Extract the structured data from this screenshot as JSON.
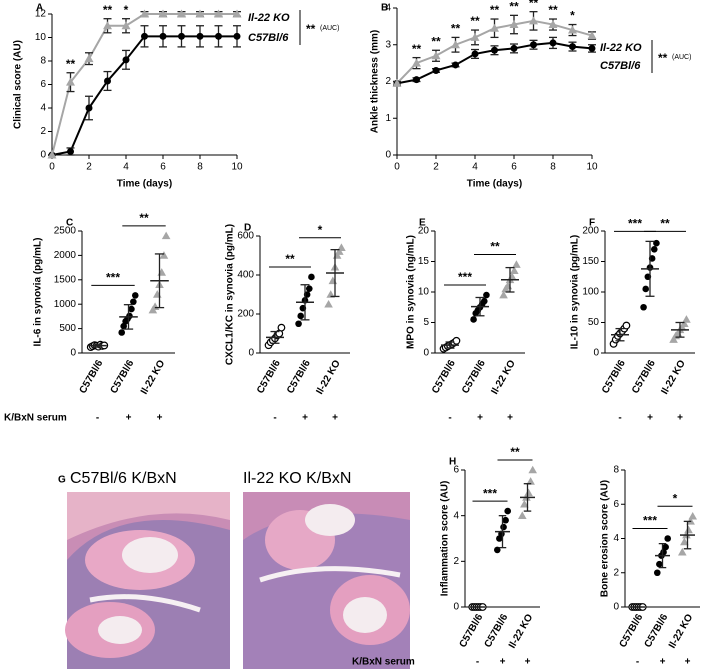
{
  "figure_g": {
    "label": "G",
    "captions": [
      "C57Bl/6 K/BxN",
      "Il-22 KO K/BxN"
    ]
  },
  "chart_data": [
    {
      "type": "line",
      "panel": "A",
      "xlabel": "Time (days)",
      "ylabel": "Clinical score (AU)",
      "x": [
        0,
        1,
        2,
        3,
        4,
        5,
        6,
        7,
        8,
        9,
        10
      ],
      "xlim": [
        0,
        10
      ],
      "xticks": [
        0,
        2,
        4,
        6,
        8,
        10
      ],
      "ylim": [
        0,
        12
      ],
      "yticks": [
        0,
        2,
        4,
        6,
        8,
        10,
        12
      ],
      "series": [
        {
          "name": "Il-22 KO",
          "color": "#a6a6a6",
          "marker": "triangle",
          "values": [
            0,
            6.2,
            8.2,
            11,
            11,
            12,
            12,
            12,
            12,
            12,
            12
          ],
          "errors": [
            0,
            0.8,
            0.5,
            0.6,
            0.6,
            0.2,
            0.2,
            0.2,
            0.2,
            0.2,
            0.2
          ]
        },
        {
          "name": "C57Bl/6",
          "color": "#000000",
          "marker": "circle",
          "values": [
            0,
            0.3,
            4,
            6.3,
            8.1,
            10.1,
            10.1,
            10.1,
            10.1,
            10.1,
            10.1
          ],
          "errors": [
            0,
            0.3,
            1,
            0.8,
            0.8,
            0.9,
            0.9,
            0.9,
            0.9,
            0.9,
            0.9
          ]
        }
      ],
      "annotations": [
        {
          "x": 1,
          "label": "**"
        },
        {
          "x": 3,
          "label": "**"
        },
        {
          "x": 4,
          "label": "*"
        }
      ],
      "auc": {
        "label": "**",
        "note": "(AUC)"
      }
    },
    {
      "type": "line",
      "panel": "B",
      "xlabel": "Time (days)",
      "ylabel": "Ankle thickness (mm)",
      "x": [
        0,
        1,
        2,
        3,
        4,
        5,
        6,
        7,
        8,
        9,
        10
      ],
      "xlim": [
        0,
        10
      ],
      "xticks": [
        0,
        2,
        4,
        6,
        8,
        10
      ],
      "ylim": [
        0,
        4
      ],
      "yticks": [
        0,
        1,
        2,
        3,
        4
      ],
      "series": [
        {
          "name": "Il-22 KO",
          "color": "#a6a6a6",
          "marker": "triangle",
          "values": [
            1.95,
            2.5,
            2.7,
            3.0,
            3.2,
            3.45,
            3.55,
            3.65,
            3.55,
            3.4,
            3.25
          ],
          "errors": [
            0.05,
            0.15,
            0.15,
            0.2,
            0.2,
            0.25,
            0.25,
            0.25,
            0.15,
            0.15,
            0.1
          ]
        },
        {
          "name": "C57Bl/6",
          "color": "#000000",
          "marker": "circle",
          "values": [
            1.95,
            2.05,
            2.3,
            2.45,
            2.75,
            2.85,
            2.9,
            3.0,
            3.05,
            2.95,
            2.9
          ],
          "errors": [
            0.05,
            0.05,
            0.05,
            0.05,
            0.12,
            0.12,
            0.12,
            0.12,
            0.15,
            0.12,
            0.1
          ]
        }
      ],
      "annotations": [
        {
          "x": 1,
          "label": "**"
        },
        {
          "x": 2,
          "label": "**"
        },
        {
          "x": 3,
          "label": "**"
        },
        {
          "x": 4,
          "label": "**"
        },
        {
          "x": 5,
          "label": "**"
        },
        {
          "x": 6,
          "label": "**"
        },
        {
          "x": 7,
          "label": "**"
        },
        {
          "x": 8,
          "label": "**"
        },
        {
          "x": 9,
          "label": "*"
        }
      ],
      "auc": {
        "label": "**",
        "note": "(AUC)"
      }
    },
    {
      "type": "strip",
      "panel": "C",
      "ylabel": "IL-6 in synovia (pg/mL)",
      "ylim": [
        0,
        2500
      ],
      "yticks": [
        0,
        500,
        1000,
        1500,
        2000,
        2500
      ],
      "categories": [
        "C57Bl/6",
        "C57Bl/6",
        "Il-22 KO"
      ],
      "groups": [
        {
          "marker": "circle-open",
          "color": "#000000",
          "values": [
            120,
            140,
            160,
            150,
            130,
            170,
            145,
            155
          ],
          "mean": 150,
          "sd": 30
        },
        {
          "marker": "circle",
          "color": "#000000",
          "values": [
            420,
            550,
            650,
            700,
            760,
            900,
            1050,
            1180
          ],
          "mean": 740,
          "sd": 250
        },
        {
          "marker": "triangle",
          "color": "#a6a6a6",
          "values": [
            880,
            950,
            1200,
            1400,
            1650,
            2000,
            2400
          ],
          "mean": 1480,
          "sd": 550
        }
      ],
      "significance": [
        {
          "from": 0,
          "to": 1,
          "label": "***"
        },
        {
          "from": 1,
          "to": 2,
          "label": "**"
        }
      ],
      "treatment": {
        "label": "K/BxN serum",
        "signs": [
          "-",
          "+",
          "+"
        ]
      }
    },
    {
      "type": "strip",
      "panel": "D",
      "ylabel": "CXCL1/KC in synovia (pg/mL)",
      "ylim": [
        0,
        600
      ],
      "yticks": [
        0,
        200,
        400,
        600
      ],
      "categories": [
        "C57Bl/6",
        "C57Bl/6",
        "Il-22 KO"
      ],
      "groups": [
        {
          "marker": "circle-open",
          "color": "#000000",
          "values": [
            40,
            55,
            65,
            75,
            90,
            100,
            130
          ],
          "mean": 80,
          "sd": 30
        },
        {
          "marker": "circle",
          "color": "#000000",
          "values": [
            150,
            190,
            230,
            270,
            300,
            330,
            390
          ],
          "mean": 260,
          "sd": 90
        },
        {
          "marker": "triangle",
          "color": "#a6a6a6",
          "values": [
            250,
            300,
            370,
            440,
            500,
            520,
            540
          ],
          "mean": 410,
          "sd": 120
        }
      ],
      "significance": [
        {
          "from": 0,
          "to": 1,
          "label": "**"
        },
        {
          "from": 1,
          "to": 2,
          "label": "*"
        }
      ],
      "treatment": {
        "signs": [
          "-",
          "+",
          "+"
        ]
      }
    },
    {
      "type": "strip",
      "panel": "E",
      "ylabel": "MPO in synovia (ng/mL)",
      "ylim": [
        0,
        20
      ],
      "yticks": [
        0,
        5,
        10,
        15,
        20
      ],
      "categories": [
        "C57Bl/6",
        "C57Bl/6",
        "Il-22 KO"
      ],
      "groups": [
        {
          "marker": "circle-open",
          "color": "#000000",
          "values": [
            0.7,
            0.9,
            1.1,
            1.3,
            1.5,
            1.7,
            2.0
          ],
          "mean": 1.3,
          "sd": 0.5
        },
        {
          "marker": "circle",
          "color": "#000000",
          "values": [
            5.5,
            6.5,
            7,
            7.5,
            8,
            8.5,
            9.5
          ],
          "mean": 7.6,
          "sd": 1.5
        },
        {
          "marker": "triangle",
          "color": "#a6a6a6",
          "values": [
            9.5,
            10.5,
            11,
            12,
            12.5,
            13.5,
            14.5
          ],
          "mean": 12,
          "sd": 2
        }
      ],
      "significance": [
        {
          "from": 0,
          "to": 1,
          "label": "***"
        },
        {
          "from": 1,
          "to": 2,
          "label": "**"
        }
      ],
      "treatment": {
        "signs": [
          "-",
          "+",
          "+"
        ]
      }
    },
    {
      "type": "strip",
      "panel": "F",
      "ylabel": "IL-10 in synovia (pg/mL)",
      "ylim": [
        0,
        200
      ],
      "yticks": [
        0,
        50,
        100,
        150,
        200
      ],
      "categories": [
        "C57Bl/6",
        "C57Bl/6",
        "Il-22 KO"
      ],
      "groups": [
        {
          "marker": "circle-open",
          "color": "#000000",
          "values": [
            15,
            22,
            28,
            32,
            36,
            40,
            45
          ],
          "mean": 30,
          "sd": 10
        },
        {
          "marker": "circle",
          "color": "#000000",
          "values": [
            75,
            105,
            125,
            140,
            155,
            170,
            180
          ],
          "mean": 138,
          "sd": 45
        },
        {
          "marker": "triangle",
          "color": "#a6a6a6",
          "values": [
            22,
            28,
            32,
            38,
            42,
            48,
            55
          ],
          "mean": 38,
          "sd": 12
        }
      ],
      "significance": [
        {
          "from": 0,
          "to": 1,
          "label": "***"
        },
        {
          "from": 1,
          "to": 2,
          "label": "**"
        }
      ],
      "treatment": {
        "signs": [
          "-",
          "+",
          "+"
        ]
      }
    },
    {
      "type": "strip",
      "panel": "H",
      "ylabel": "Inflammation score (AU)",
      "ylim": [
        0,
        6
      ],
      "yticks": [
        0,
        2,
        4,
        6
      ],
      "categories": [
        "C57Bl/6",
        "C57Bl/6",
        "Il-22 KO"
      ],
      "groups": [
        {
          "marker": "circle-open",
          "color": "#000000",
          "values": [
            0,
            0,
            0,
            0,
            0,
            0
          ],
          "mean": 0,
          "sd": 0
        },
        {
          "marker": "circle",
          "color": "#000000",
          "values": [
            2.5,
            3,
            3.2,
            3.5,
            3.8,
            4.2
          ],
          "mean": 3.3,
          "sd": 0.7
        },
        {
          "marker": "triangle",
          "color": "#a6a6a6",
          "values": [
            4,
            4.5,
            4.8,
            5,
            5.5,
            6
          ],
          "mean": 4.8,
          "sd": 0.6
        }
      ],
      "significance": [
        {
          "from": 0,
          "to": 1,
          "label": "***"
        },
        {
          "from": 1,
          "to": 2,
          "label": "**"
        }
      ],
      "treatment": {
        "label": "K/BxN serum",
        "signs": [
          "-",
          "+",
          "+"
        ]
      }
    },
    {
      "type": "strip",
      "ylabel": "Bone erosion score (AU)",
      "ylim": [
        0,
        8
      ],
      "yticks": [
        0,
        2,
        4,
        6,
        8
      ],
      "categories": [
        "C57Bl/6",
        "C57Bl/6",
        "Il-22 KO"
      ],
      "groups": [
        {
          "marker": "circle-open",
          "color": "#000000",
          "values": [
            0,
            0,
            0,
            0,
            0,
            0
          ],
          "mean": 0,
          "sd": 0
        },
        {
          "marker": "circle",
          "color": "#000000",
          "values": [
            2,
            2.5,
            3,
            3.2,
            3.5,
            4
          ],
          "mean": 3,
          "sd": 0.7
        },
        {
          "marker": "triangle",
          "color": "#a6a6a6",
          "values": [
            3.2,
            3.8,
            4.2,
            4.5,
            5,
            5.3
          ],
          "mean": 4.2,
          "sd": 0.8
        }
      ],
      "significance": [
        {
          "from": 0,
          "to": 1,
          "label": "***"
        },
        {
          "from": 1,
          "to": 2,
          "label": "*"
        }
      ],
      "treatment": {
        "signs": [
          "-",
          "+",
          "+"
        ]
      }
    }
  ]
}
